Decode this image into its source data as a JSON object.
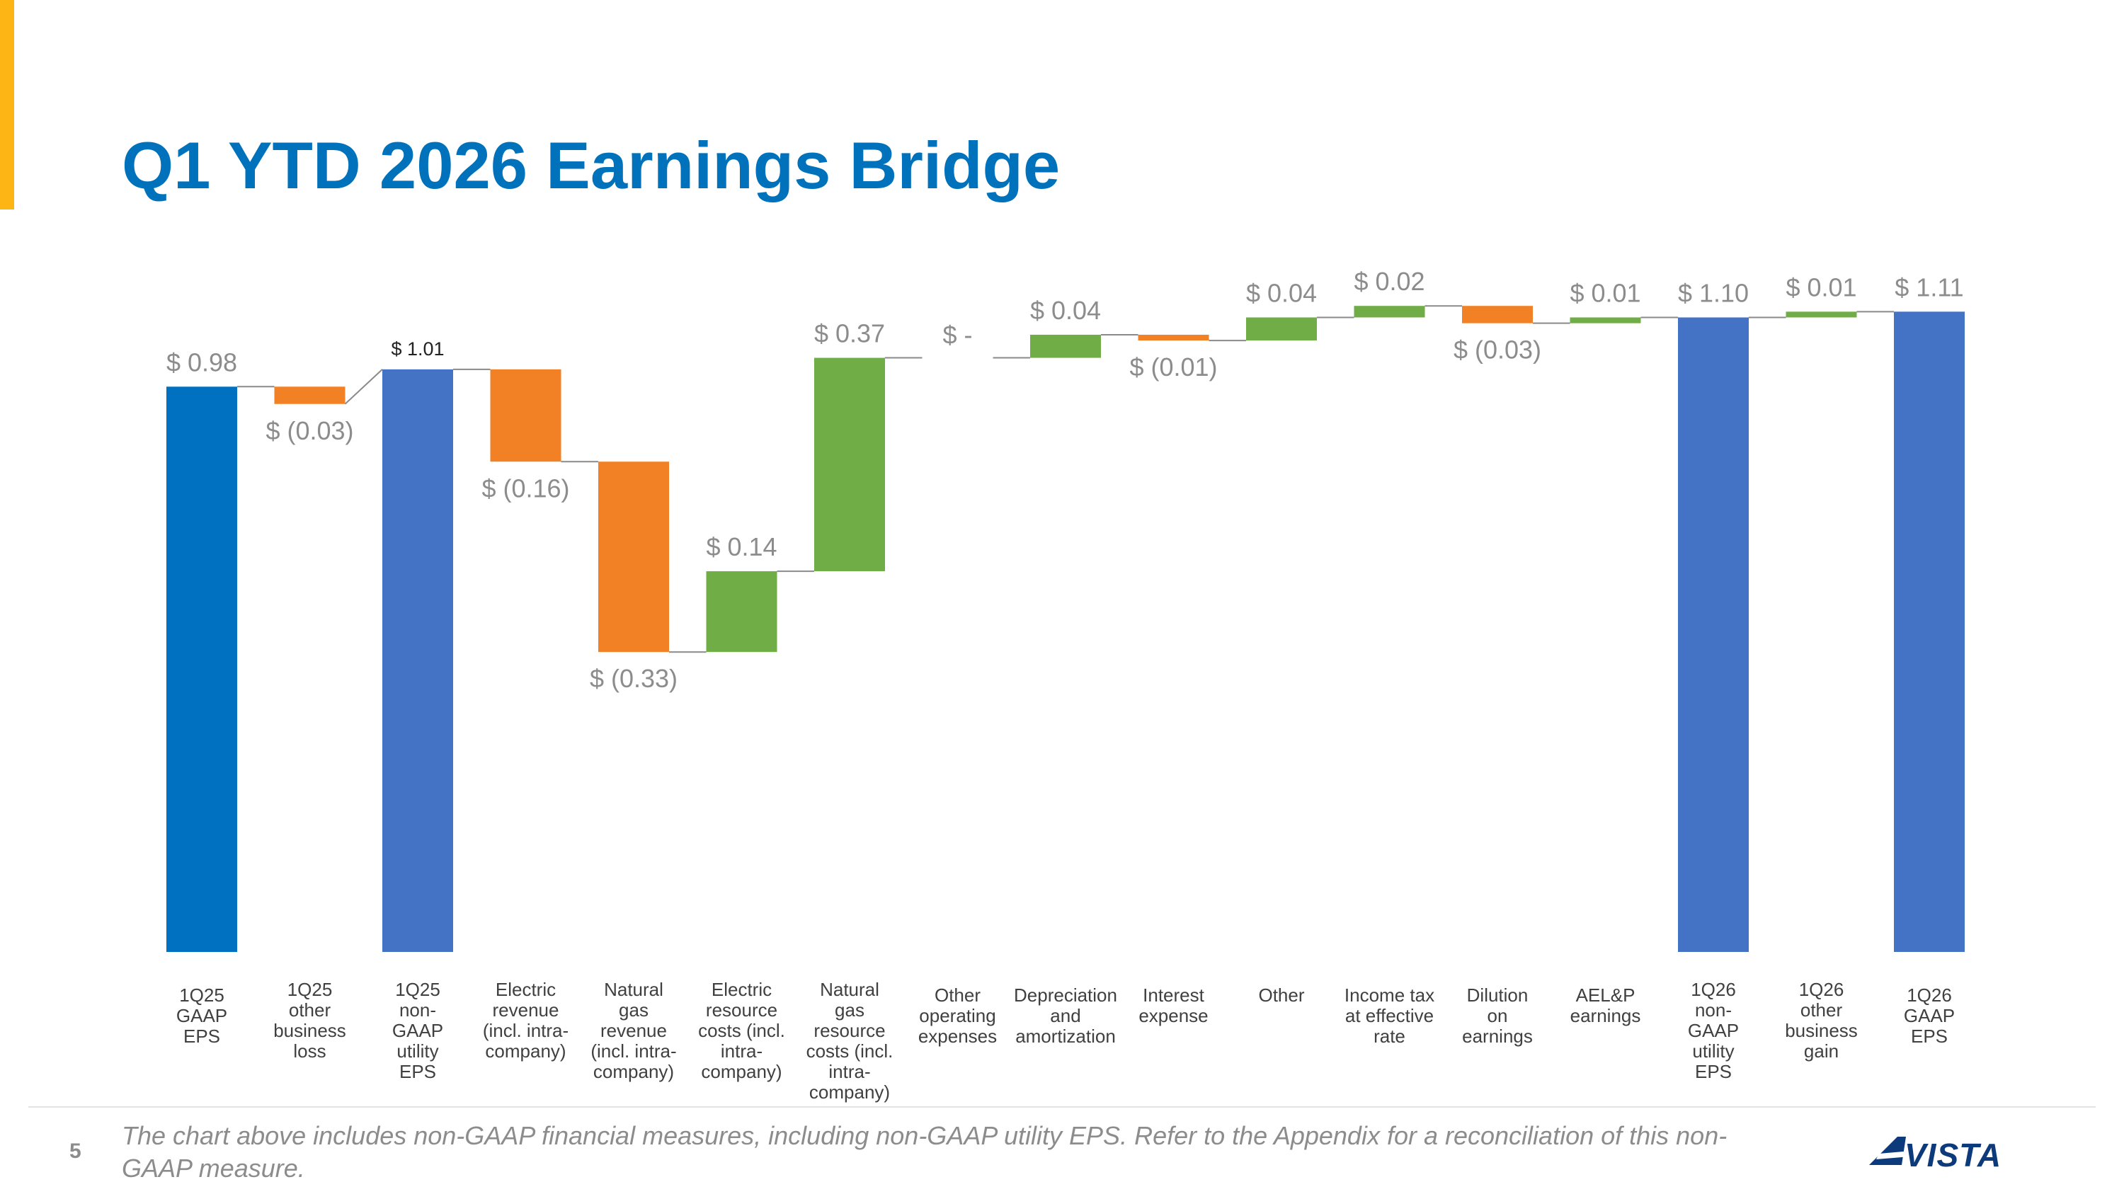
{
  "slide": {
    "title": "Q1 YTD 2026 Earnings Bridge",
    "number": "5",
    "footnote": "The chart above includes non-GAAP financial measures, including non-GAAP utility EPS. Refer to the Appendix for a reconciliation of this non-GAAP measure.",
    "logo_text": "AVISTA",
    "accent_color": "#FDB515",
    "title_color": "#0072BC"
  },
  "chart_data": {
    "type": "bar",
    "subtype": "waterfall",
    "title": "",
    "xlabel": "",
    "ylabel": "",
    "grid": false,
    "legend": "none",
    "colors": {
      "gaap": "#0070C0",
      "total": "#4472C4",
      "increase": "#70AD47",
      "decrease": "#F28025"
    },
    "items": [
      {
        "category": "1Q25 GAAP EPS",
        "value": 0.98,
        "kind": "total",
        "color_key": "gaap",
        "label": "$ 0.98"
      },
      {
        "category": "1Q25 other business loss",
        "value": -0.03,
        "kind": "delta",
        "label": "$ (0.03)"
      },
      {
        "category": "1Q25 non-GAAP utility EPS",
        "value": 1.01,
        "kind": "total",
        "color_key": "total",
        "label": "$ 1.01"
      },
      {
        "category": "Electric revenue (incl. intra-company)",
        "value": -0.16,
        "kind": "delta",
        "label": "$ (0.16)"
      },
      {
        "category": "Natural gas revenue (incl. intra-company)",
        "value": -0.33,
        "kind": "delta",
        "label": "$ (0.33)"
      },
      {
        "category": "Electric resource costs (incl. intra-company)",
        "value": 0.14,
        "kind": "delta",
        "label": "$ 0.14"
      },
      {
        "category": "Natural gas resource costs (incl. intra-company)",
        "value": 0.37,
        "kind": "delta",
        "label": "$ 0.37"
      },
      {
        "category": "Other operating expenses",
        "value": 0.0,
        "kind": "delta",
        "label": "$ -"
      },
      {
        "category": "Depreciation and amortization",
        "value": 0.04,
        "kind": "delta",
        "label": "$ 0.04"
      },
      {
        "category": "Interest expense",
        "value": -0.01,
        "kind": "delta",
        "label": "$ (0.01)"
      },
      {
        "category": "Other",
        "value": 0.04,
        "kind": "delta",
        "label": "$ 0.04"
      },
      {
        "category": "Income tax at effective rate",
        "value": 0.02,
        "kind": "delta",
        "label": "$ 0.02"
      },
      {
        "category": "Dilution on earnings",
        "value": -0.03,
        "kind": "delta",
        "label": "$ (0.03)"
      },
      {
        "category": "AEL&P earnings",
        "value": 0.01,
        "kind": "delta",
        "label": "$ 0.01"
      },
      {
        "category": "1Q26 non-GAAP utility EPS",
        "value": 1.1,
        "kind": "total",
        "color_key": "total",
        "label": "$ 1.10"
      },
      {
        "category": "1Q26 other business gain",
        "value": 0.01,
        "kind": "delta",
        "label": "$ 0.01"
      },
      {
        "category": "1Q26 GAAP EPS",
        "value": 1.11,
        "kind": "total",
        "color_key": "total",
        "label": "$ 1.11"
      }
    ],
    "category_lines": [
      [
        "1Q25",
        "GAAP",
        "EPS"
      ],
      [
        "1Q25",
        "other",
        "business",
        "loss"
      ],
      [
        "1Q25",
        "non-",
        "GAAP",
        "utility",
        "EPS"
      ],
      [
        "Electric",
        "revenue",
        "(incl. intra-",
        "company)"
      ],
      [
        "Natural",
        "gas",
        "revenue",
        "(incl. intra-",
        "company)"
      ],
      [
        "Electric",
        "resource",
        "costs (incl.",
        "intra-",
        "company)"
      ],
      [
        "Natural",
        "gas",
        "resource",
        "costs (incl.",
        "intra-",
        "company)"
      ],
      [
        "Other",
        "operating",
        "expenses"
      ],
      [
        "Depreciation",
        "and",
        "amortization"
      ],
      [
        "Interest",
        "expense"
      ],
      [
        "Other"
      ],
      [
        "Income tax",
        "at effective",
        "rate"
      ],
      [
        "Dilution",
        "on",
        "earnings"
      ],
      [
        "AEL&P",
        "earnings"
      ],
      [
        "1Q26",
        "non-",
        "GAAP",
        "utility",
        "EPS"
      ],
      [
        "1Q26",
        "other",
        "business",
        "gain"
      ],
      [
        "1Q26",
        "GAAP",
        "EPS"
      ]
    ]
  }
}
